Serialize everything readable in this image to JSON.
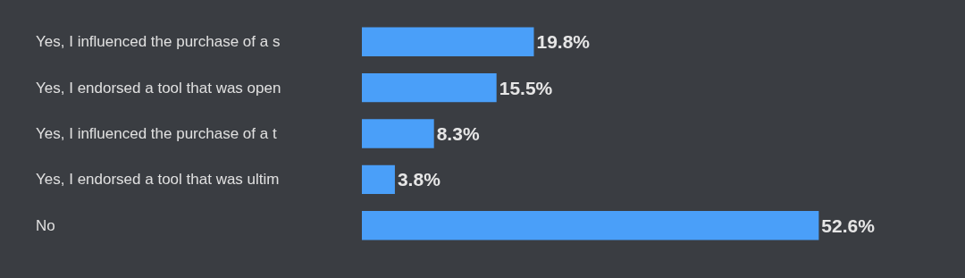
{
  "chart_data": {
    "type": "bar",
    "orientation": "horizontal",
    "categories": [
      "Yes, I influenced the purchase of a s",
      "Yes, I endorsed a tool that was open",
      "Yes, I influenced the purchase of a t",
      "Yes, I endorsed a tool that was ultim",
      "No"
    ],
    "values": [
      19.8,
      15.5,
      8.3,
      3.8,
      52.6
    ],
    "value_labels": [
      "19.8%",
      "15.5%",
      "8.3%",
      "3.8%",
      "52.6%"
    ],
    "color": "#4a9ff9"
  }
}
